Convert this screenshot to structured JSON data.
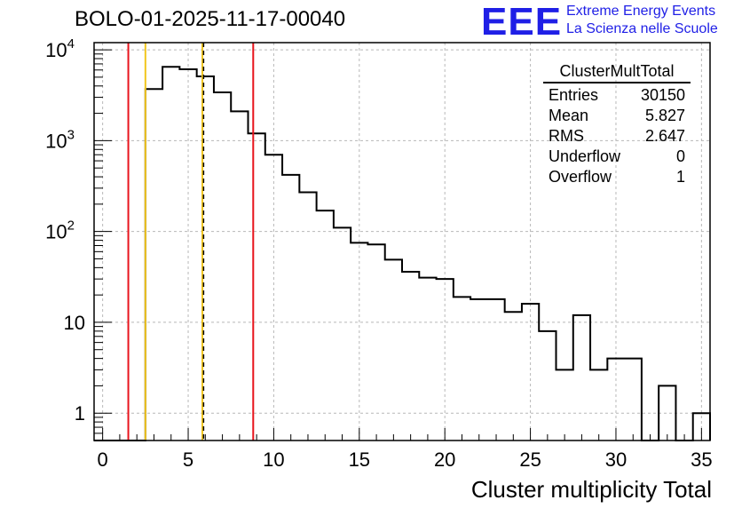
{
  "header": {
    "title": "BOLO-01-2025-11-17-00040",
    "logo": "EEE",
    "logo_line1": "Extreme Energy Events",
    "logo_line2": "La Scienza nelle Scuole"
  },
  "stats_box": {
    "name": "ClusterMultTotal",
    "rows": [
      {
        "label": "Entries",
        "value": "30150"
      },
      {
        "label": "Mean",
        "value": "5.827"
      },
      {
        "label": "RMS",
        "value": "2.647"
      },
      {
        "label": "Underflow",
        "value": "0"
      },
      {
        "label": "Overflow",
        "value": "1"
      }
    ]
  },
  "colors": {
    "histogram": "#000000",
    "red_line": "#e8141c",
    "yellow_line": "#f2c61f",
    "grid": "#b8b8b8"
  },
  "chart_data": {
    "type": "histogram",
    "title": "BOLO-01-2025-11-17-00040",
    "xlabel": "Cluster multiplicity Total",
    "ylabel": "",
    "xlim": [
      -0.5,
      35.5
    ],
    "ylim": [
      0.5,
      12000
    ],
    "yscale": "log",
    "grid": true,
    "bin_width": 1,
    "bin_start": -0.5,
    "values": [
      0,
      0,
      0,
      3700,
      6500,
      6100,
      5100,
      3400,
      2100,
      1200,
      700,
      420,
      270,
      170,
      110,
      75,
      72,
      49,
      36,
      31,
      30,
      19,
      18,
      18,
      13,
      16,
      8,
      3,
      12,
      3,
      4,
      4,
      0,
      2,
      0,
      1
    ],
    "x_ticks": [
      "0",
      "5",
      "10",
      "15",
      "20",
      "25",
      "30",
      "35"
    ],
    "y_ticks": [
      {
        "value": 1,
        "base": "1",
        "exp": ""
      },
      {
        "value": 10,
        "base": "10",
        "exp": ""
      },
      {
        "value": 100,
        "base": "10",
        "exp": "2"
      },
      {
        "value": 1000,
        "base": "10",
        "exp": "3"
      },
      {
        "value": 10000,
        "base": "10",
        "exp": "4"
      }
    ],
    "vertical_lines": [
      {
        "x": 1.5,
        "color": "red",
        "style": "solid"
      },
      {
        "x": 2.5,
        "color": "yellow",
        "style": "solid"
      },
      {
        "x": 5.827,
        "color": "yellow",
        "style": "solid"
      },
      {
        "x": 5.9,
        "color": "black",
        "style": "dashed"
      },
      {
        "x": 8.8,
        "color": "red",
        "style": "solid"
      }
    ]
  }
}
